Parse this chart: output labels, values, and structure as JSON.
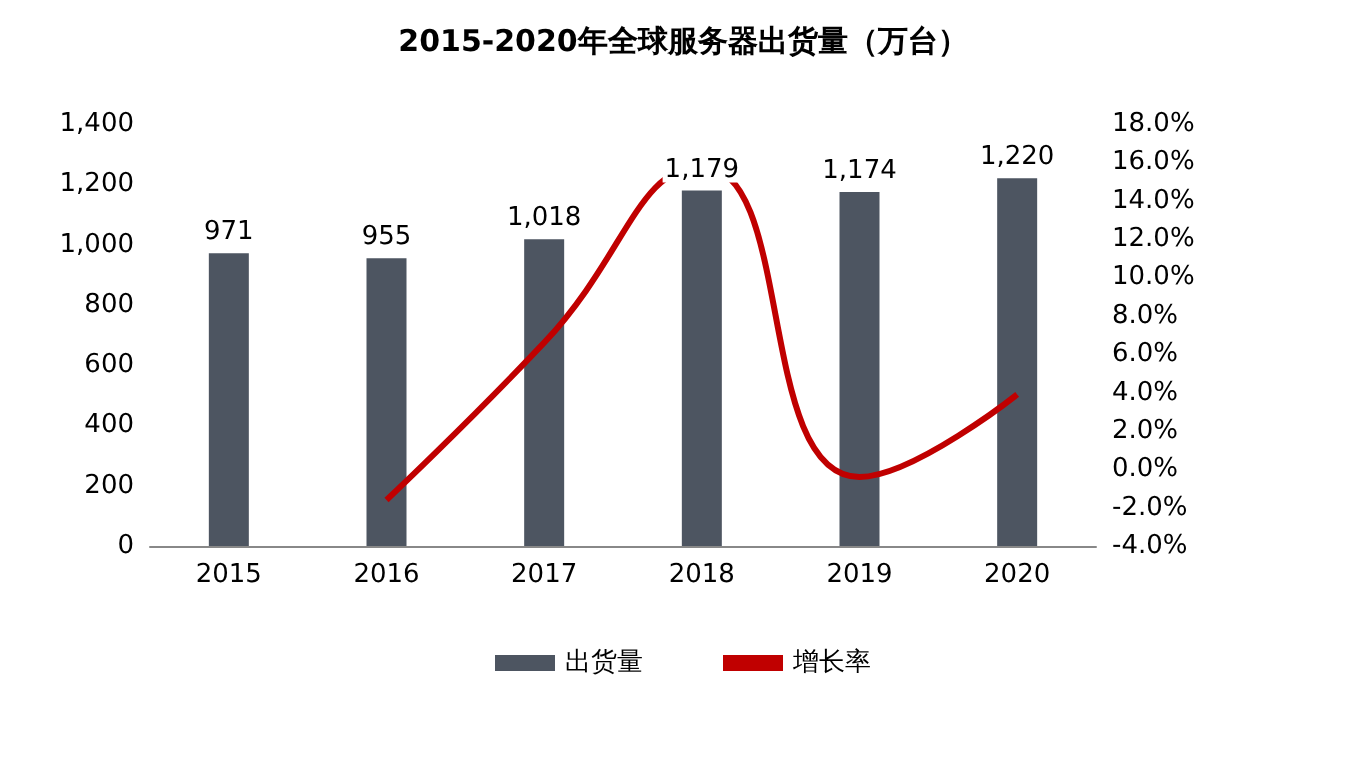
{
  "chart_data": {
    "type": "bar",
    "title": "2015-2020年全球服务器出货量（万台）",
    "categories": [
      "2015",
      "2016",
      "2017",
      "2018",
      "2019",
      "2020"
    ],
    "series": [
      {
        "name": "出货量",
        "color": "#4d5561",
        "values": [
          971,
          955,
          1018,
          1179,
          1174,
          1220
        ],
        "value_labels": [
          "971",
          "955",
          "1,018",
          "1,179",
          "1,174",
          "1,220"
        ]
      },
      {
        "name": "增长率",
        "type": "line",
        "axis": "y2",
        "color": "#c00000",
        "values": [
          null,
          -1.6,
          6.6,
          15.8,
          -0.4,
          3.9
        ]
      }
    ],
    "ylim": [
      0,
      1400
    ],
    "yticks": [
      0,
      200,
      400,
      600,
      800,
      {
        "value": 1000,
        "label": "1,000"
      },
      {
        "value": 1200,
        "label": "1,200"
      },
      {
        "value": 1400,
        "label": "1,400"
      }
    ],
    "y2lim": [
      -4,
      18
    ],
    "y2ticks": [
      {
        "value": -4,
        "label": "-4.0%"
      },
      {
        "value": -2,
        "label": "-2.0%"
      },
      {
        "value": 0,
        "label": "0.0%"
      },
      {
        "value": 2,
        "label": "2.0%"
      },
      {
        "value": 4,
        "label": "4.0%"
      },
      {
        "value": 6,
        "label": "6.0%"
      },
      {
        "value": 8,
        "label": "8.0%"
      },
      {
        "value": 10,
        "label": "10.0%"
      },
      {
        "value": 12,
        "label": "12.0%"
      },
      {
        "value": 14,
        "label": "14.0%"
      },
      {
        "value": 16,
        "label": "16.0%"
      },
      {
        "value": 18,
        "label": "18.0%"
      }
    ],
    "grid": false,
    "legend": "bottom",
    "marker": "none",
    "line_style": "solid"
  }
}
